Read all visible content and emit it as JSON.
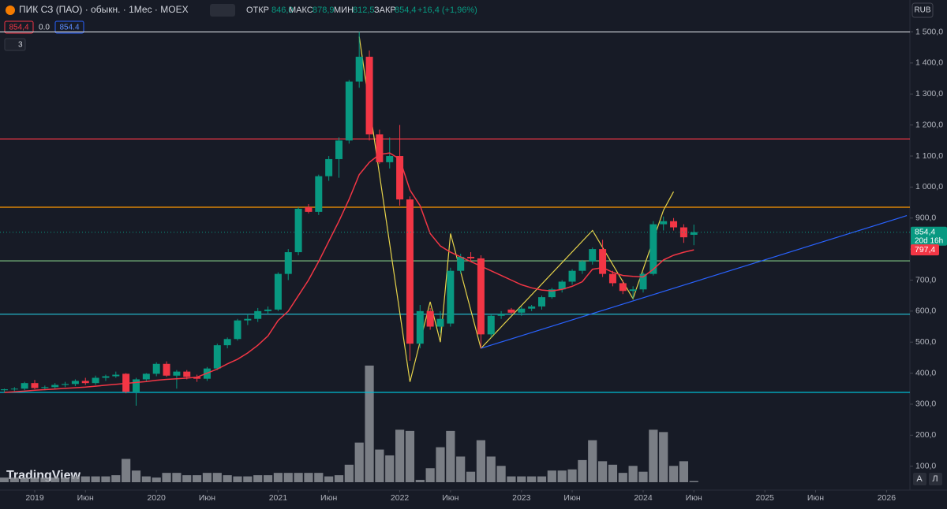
{
  "header": {
    "symbol": "ПИК СЗ (ПАО) · обыкн. · 1Мес · MOEX",
    "open_label": "ОТКР",
    "open": "846,0",
    "high_label": "МАКС",
    "high": "878,9",
    "low_label": "МИН",
    "low": "812,5",
    "close_label": "ЗАКР",
    "close": "854,4",
    "change": "+16,4 (+1,96%)",
    "currency": "RUB"
  },
  "toolbar": {
    "sell": "854,4",
    "spread": "0.0",
    "buy": "854.4",
    "indicators_count": "3"
  },
  "watermark": "TradingView",
  "axis_buttons": [
    "A",
    "Л"
  ],
  "chart_data": {
    "type": "candlestick",
    "x": [
      "2018-10",
      "2018-11",
      "2018-12",
      "2019-01",
      "2019-02",
      "2019-03",
      "2019-04",
      "2019-05",
      "2019-06",
      "2019-07",
      "2019-08",
      "2019-09",
      "2019-10",
      "2019-11",
      "2019-12",
      "2020-01",
      "2020-02",
      "2020-03",
      "2020-04",
      "2020-05",
      "2020-06",
      "2020-07",
      "2020-08",
      "2020-09",
      "2020-10",
      "2020-11",
      "2020-12",
      "2021-01",
      "2021-02",
      "2021-03",
      "2021-04",
      "2021-05",
      "2021-06",
      "2021-07",
      "2021-08",
      "2021-09",
      "2021-10",
      "2021-11",
      "2021-12",
      "2022-01",
      "2022-02",
      "2022-03",
      "2022-04",
      "2022-05",
      "2022-06",
      "2022-07",
      "2022-08",
      "2022-09",
      "2022-10",
      "2022-11",
      "2022-12",
      "2023-01",
      "2023-02",
      "2023-03",
      "2023-04",
      "2023-05",
      "2023-06",
      "2023-07",
      "2023-08",
      "2023-09",
      "2023-10",
      "2023-11",
      "2023-12",
      "2024-01",
      "2024-02",
      "2024-03",
      "2024-04",
      "2024-05",
      "2024-06"
    ],
    "open": [
      345,
      348,
      350,
      368,
      352,
      355,
      362,
      365,
      375,
      368,
      385,
      390,
      398,
      340,
      380,
      398,
      430,
      392,
      405,
      388,
      382,
      415,
      490,
      510,
      570,
      575,
      600,
      605,
      720,
      790,
      935,
      920,
      1035,
      1090,
      1150,
      1340,
      1420,
      1170,
      1080,
      1100,
      960,
      495,
      600,
      550,
      560,
      730,
      775,
      770,
      525,
      585,
      605,
      595,
      608,
      615,
      645,
      670,
      695,
      730,
      760,
      800,
      720,
      690,
      665,
      670,
      720,
      880,
      890,
      870,
      846
    ],
    "high": [
      350,
      355,
      372,
      378,
      360,
      368,
      372,
      380,
      385,
      392,
      395,
      405,
      400,
      385,
      400,
      435,
      438,
      410,
      410,
      395,
      420,
      495,
      515,
      575,
      590,
      610,
      615,
      725,
      800,
      935,
      945,
      1040,
      1100,
      1160,
      1345,
      1500,
      1440,
      1185,
      1160,
      1200,
      970,
      620,
      610,
      600,
      740,
      785,
      790,
      780,
      590,
      600,
      610,
      615,
      620,
      650,
      675,
      700,
      735,
      765,
      805,
      830,
      730,
      700,
      680,
      725,
      890,
      905,
      900,
      880,
      878.9
    ],
    "low": [
      338,
      342,
      345,
      348,
      345,
      350,
      355,
      358,
      362,
      362,
      375,
      385,
      335,
      295,
      372,
      390,
      388,
      350,
      380,
      372,
      375,
      410,
      480,
      505,
      555,
      565,
      590,
      600,
      700,
      780,
      915,
      910,
      1020,
      1030,
      1140,
      1320,
      1150,
      1075,
      1060,
      940,
      440,
      480,
      540,
      530,
      550,
      720,
      760,
      480,
      515,
      575,
      590,
      585,
      600,
      605,
      640,
      660,
      685,
      720,
      750,
      710,
      680,
      655,
      640,
      660,
      715,
      860,
      860,
      820,
      812.5
    ],
    "close": [
      348,
      350,
      368,
      352,
      355,
      362,
      365,
      375,
      368,
      385,
      390,
      395,
      340,
      380,
      398,
      430,
      392,
      405,
      388,
      382,
      415,
      490,
      510,
      570,
      575,
      600,
      605,
      720,
      790,
      930,
      920,
      1035,
      1090,
      1150,
      1340,
      1420,
      1170,
      1080,
      1100,
      960,
      495,
      600,
      550,
      575,
      730,
      775,
      770,
      525,
      585,
      590,
      595,
      608,
      615,
      645,
      670,
      695,
      730,
      760,
      800,
      720,
      690,
      665,
      670,
      720,
      880,
      890,
      870,
      838,
      854.4
    ],
    "up_color": "#089981",
    "down_color": "#f23645",
    "last_value_label": "854,4",
    "countdown": "20d 16h",
    "ma": {
      "color": "#f23645",
      "values": [
        338,
        340,
        342,
        345,
        347,
        349,
        351,
        353,
        355,
        358,
        361,
        364,
        367,
        370,
        373,
        377,
        380,
        382,
        384,
        387,
        400,
        413,
        430,
        445,
        465,
        490,
        520,
        570,
        600,
        650,
        700,
        760,
        825,
        890,
        960,
        1040,
        1080,
        1105,
        1110,
        1090,
        990,
        940,
        850,
        810,
        790,
        775,
        760,
        745,
        730,
        715,
        700,
        685,
        675,
        668,
        665,
        670,
        680,
        695,
        735,
        740,
        725,
        715,
        712,
        710,
        735,
        765,
        780,
        790,
        797.4
      ],
      "value_label": "797,4"
    },
    "volume": {
      "color": "#8c8f97",
      "values": [
        4,
        4,
        4,
        4,
        4,
        4,
        4,
        5,
        5,
        5,
        5,
        6,
        20,
        10,
        5,
        4,
        8,
        8,
        6,
        6,
        8,
        8,
        6,
        5,
        5,
        6,
        6,
        8,
        8,
        8,
        8,
        8,
        5,
        6,
        15,
        34,
        100,
        28,
        23,
        45,
        44,
        2,
        12,
        30,
        44,
        22,
        9,
        36,
        22,
        14,
        5,
        5,
        5,
        5,
        10,
        10,
        11,
        19,
        36,
        18,
        15,
        8,
        14,
        9,
        45,
        43,
        14,
        18,
        1
      ]
    },
    "levels": [
      {
        "price": 1500,
        "color": "#d1d4dc"
      },
      {
        "price": 1155,
        "color": "#f23645"
      },
      {
        "price": 935,
        "color": "#ff9800"
      },
      {
        "price": 762,
        "color": "#81c784"
      },
      {
        "price": 590,
        "color": "#26c6da"
      },
      {
        "price": 338,
        "color": "#00bcd4"
      }
    ],
    "lines": [
      {
        "color": "#e6d34a",
        "points": [
          [
            "2021-09",
            1485
          ],
          [
            "2022-02",
            372
          ],
          [
            "2022-04",
            630
          ],
          [
            "2022-05",
            500
          ],
          [
            "2022-06",
            850
          ],
          [
            "2022-09",
            480
          ]
        ]
      },
      {
        "color": "#e6d34a",
        "points": [
          [
            "2022-09",
            480
          ],
          [
            "2023-08",
            860
          ],
          [
            "2023-12",
            640
          ],
          [
            "2024-03",
            925
          ],
          [
            "2024-04",
            985
          ]
        ]
      },
      {
        "color": "#2962ff",
        "points": [
          [
            "2022-09",
            480
          ],
          [
            "2026-03",
            908
          ]
        ]
      }
    ],
    "ylim": [
      23,
      1603
    ],
    "yticks": [
      {
        "value": 100,
        "label": "100,0"
      },
      {
        "value": 200,
        "label": "200,0"
      },
      {
        "value": 300,
        "label": "300,0"
      },
      {
        "value": 400,
        "label": "400,0"
      },
      {
        "value": 500,
        "label": "500,0"
      },
      {
        "value": 600,
        "label": "600,0"
      },
      {
        "value": 700,
        "label": "700,0"
      },
      {
        "value": 800,
        "label": "800,0"
      },
      {
        "value": 900,
        "label": "900,0"
      },
      {
        "value": 1000,
        "label": "1 000,0"
      },
      {
        "value": 1100,
        "label": "1 100,0"
      },
      {
        "value": 1200,
        "label": "1 200,0"
      },
      {
        "value": 1300,
        "label": "1 300,0"
      },
      {
        "value": 1400,
        "label": "1 400,0"
      },
      {
        "value": 1500,
        "label": "1 500,0"
      }
    ],
    "xticks": [
      {
        "value": "2019-01",
        "label": "2019"
      },
      {
        "value": "2019-06",
        "label": "Июн"
      },
      {
        "value": "2020-01",
        "label": "2020"
      },
      {
        "value": "2020-06",
        "label": "Июн"
      },
      {
        "value": "2021-01",
        "label": "2021"
      },
      {
        "value": "2021-06",
        "label": "Июн"
      },
      {
        "value": "2022-01",
        "label": "2022"
      },
      {
        "value": "2022-06",
        "label": "Июн"
      },
      {
        "value": "2023-01",
        "label": "2023"
      },
      {
        "value": "2023-06",
        "label": "Июн"
      },
      {
        "value": "2024-01",
        "label": "2024"
      },
      {
        "value": "2024-06",
        "label": "Июн"
      },
      {
        "value": "2025-01",
        "label": "2025"
      },
      {
        "value": "2025-06",
        "label": "Июн"
      },
      {
        "value": "2026-01",
        "label": "2026"
      }
    ],
    "grid": false
  }
}
